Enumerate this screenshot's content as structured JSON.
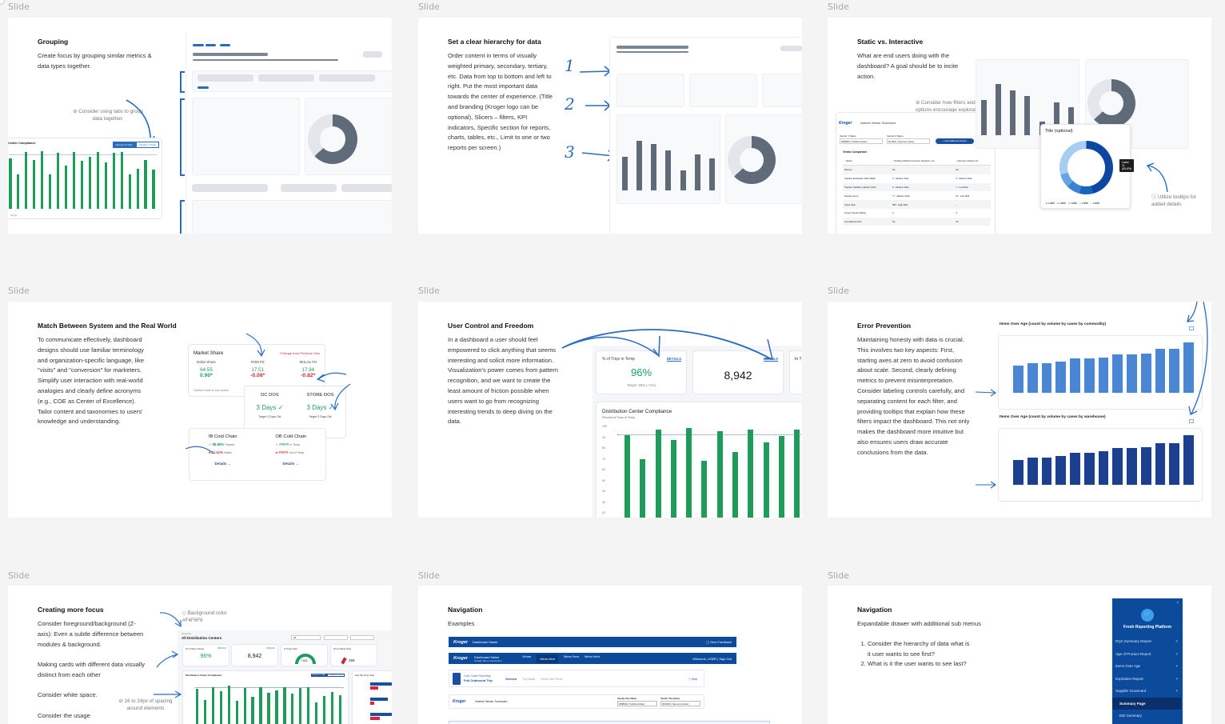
{
  "slide_label": "Slide",
  "slides": {
    "grouping": {
      "title": "Grouping",
      "body": "Create focus by grouping similar metrics & data types together.",
      "note": "Consider using tabs to group data together.",
      "chart": {
        "title": "Center Compliance",
        "tab1": "Percent of Trips",
        "tab2": "Number of Trips",
        "legend": "Target"
      }
    },
    "hierarchy": {
      "title": "Set a clear hierarchy for data",
      "body": "Order content in terms of visually weighted primary, secondary, tertiary, etc. Data from top to bottom and left to right. Put the most important data towards the center of experience. (Title and branding (Kroger logo can be optional), Slicers – filters, KPI indicators, Specific section for reports, charts, tables, etc., Limit to one or two reports per screen.)",
      "markers": [
        "1",
        "2",
        "3"
      ]
    },
    "static_interactive": {
      "title": "Static vs. Interactive",
      "body": "What are end users doing with the dashboard? A goal should be to incite action.",
      "note_filters": "Consider how filters and other options encourage exploration.",
      "note_tooltips": "Utilize tooltips for added details",
      "app_logo": "Kroger",
      "app_title": "Indirect Vendor Scorecard",
      "vendor1_label": "Vendor 1 Name",
      "vendor1_value": "3098943 | Toshiba Global ...",
      "vendor2_label": "Vendor 2 Name",
      "vendor2_value": "30 9931 | Siemens Indust...",
      "add_vendor": "+ Add Additional Vendor",
      "table_title": "Vendor Comparison",
      "table_headers": [
        "Metric",
        "Toshiba Global Commerce Solutions, Inc.",
        "Siemens Industry Inc."
      ],
      "table_rows": [
        [
          "Diverse",
          "No",
          "No"
        ],
        [
          "Supplier Evaluation Risk (SER)",
          "5 - Medium Risk",
          "5 - Medium Risk"
        ],
        [
          "Supplier Stability Indicator (SSI)",
          "6 - Medium Risk",
          "7 - Low Risk"
        ],
        [
          "Paydex Score",
          "77 - Medium Risk",
          "64 - Low Risk"
        ],
        [
          "Cyber Risk",
          "580 - High Risk",
          "--"
        ],
        [
          "Kroger Vendor Rating",
          "4",
          "3"
        ],
        [
          "Compliance Hold",
          "No",
          "No"
        ]
      ],
      "donut_title": "Title (optional)",
      "donut_labels": [
        "29.2%",
        "45.8%",
        "8.3%",
        "8.3%",
        "8.3%"
      ],
      "tooltip_label": "Label",
      "tooltip_value": "11 (45.8%)",
      "legend": [
        "Label",
        "Label",
        "Label",
        "Label",
        "Label"
      ]
    },
    "match": {
      "title": "Match Between System and the Real World",
      "body": "To communicate effectively, dashboard designs should use familiar terminology and organization-specific language, like \"visits\" and \"conversion\" for marketers. Simplify user interaction with real-world analogies and clearly define acronyms (e.g., COE as Center of Excellence). Tailor content and taxonomies to users' knowledge and understanding.",
      "market_share": {
        "title": "Market Share",
        "change_note": "*Change from Previous Year",
        "cols": [
          {
            "label": "Dollar Share",
            "value": "64.55",
            "change": "0.90*"
          },
          {
            "label": "ROM FD",
            "value": "17.51",
            "change": "-0.08*"
          },
          {
            "label": "MULOx FD",
            "value": "17.94",
            "change": "-0.82*"
          }
        ],
        "footnote": "*Market share is only availal"
      },
      "dos": [
        {
          "label": "DC DOS",
          "value": "3 Days",
          "target": "Target 3 Days Old"
        },
        {
          "label": "STORE DOS",
          "value": "3 Days",
          "target": "Target 3 Days Old"
        }
      ],
      "cold_chain": [
        {
          "label": "IB Cold Chain",
          "pass_value": "88.89%",
          "pass_label": "Passed",
          "fail_value": "11.11%",
          "fail_label": "Failed",
          "link": "Details →"
        },
        {
          "label": "OB Cold Chain",
          "pass_value": "#####",
          "pass_label": "In Temp",
          "fail_value": "#####",
          "fail_label": "Out of Temp",
          "link": "Details →"
        }
      ]
    },
    "user_control": {
      "title": "User Control and Freedom",
      "body": "In a dashboard a user should feel empowered to click anything that seems interesting and solicit more information. Visualization's power comes from pattern recognition, and we want to create the least amount of friction possible when users want to go from recognizing interesting trends to deep diving on the data.",
      "kpi1_label": "% of Trips in Temp",
      "kpi1_link": "DETAILS",
      "kpi1_value": "96%",
      "kpi1_target": "Target: 95% (+1%)",
      "kpi2_link": "DETAILS",
      "kpi2_value": "8,942",
      "kpi3_label": "In T",
      "chart_title": "Distribution Center Compliance",
      "chart_subtitle": "Percent of Trips In Temp"
    },
    "error_prevention": {
      "title": "Error Prevention",
      "body": "Maintaining honesty with data is crucial. This involves two key aspects: First, starting axes at zero to avoid confusion about scale. Second, clearly defining metrics to prevent misinterpretation. Consider labeling controls carefully, and separating content for each filter, and providing tooltips that explain how these filters impact the dashboard. This not only makes the dashboard more intuitive but also ensures users draw accurate conclusions from the data.",
      "chart1_title": "Items Over Age (count by volume by cases by commodity)",
      "chart2_title": "Items Over Age (count by volume by cases by warehouse)"
    },
    "focus": {
      "title": "Creating more focus",
      "p1": "Consider foreground/background (Z-axis): Even a subtle difference between modules & background.",
      "p2": "Making cards with different data visually distinct from each other",
      "p3": "Consider white space.",
      "p4": "Consider the usage",
      "note_bg": "Background color #F4F6F8",
      "note_spacing": "16 to 24px of spacing around elements",
      "dash_overline": "Overview",
      "dash_title": "All Distribution Centers",
      "filter_label": "All",
      "kpi1_label": "% of Trips in Temp",
      "kpi1_value": "96%",
      "kpi2_value": "8,942",
      "kpi3_label": "In Temp Trips",
      "kpi3_value": "7,601",
      "kpi4_label": "Out of Temp Trips",
      "kpi4_value": "358",
      "details": "DETAILS",
      "chart_title": "Distribution Center Compliance",
      "tab1": "Percent of Trips",
      "tab2": "Number of Trips",
      "side_title": "Avg Trip Time (Hrs)"
    },
    "nav_examples": {
      "title": "Navigation",
      "subtitle": "Examples",
      "bar1_logo": "Kroger",
      "bar1_name": "Dashboard Name",
      "bar1_right": "Give Feedback",
      "bar2_name": "Dashboard Name",
      "bar2_sub": "Smaller title or description",
      "bar2_menu": [
        "Home",
        "Menu Item",
        "Menu Item",
        "Menu Item"
      ],
      "bar2_right": "Welcome, USER | Sign Out",
      "bar3_title": "Cold Chain Reporting",
      "bar3_name": "Full Outbound Trip",
      "bar3_tabs": [
        "Overview",
        "Trip Details",
        "Period Over Period"
      ],
      "bar3_help": "Help",
      "bar4_name": "Indirect Vendor Scorecard",
      "bar4_v1_label": "Vendor One Name",
      "bar4_v1_value": "3098943 | Toshiba Global",
      "bar4_v2_label": "Vendor Two Name",
      "bar4_v2_value": "3010031 | Siemens Industr"
    },
    "nav_drawer": {
      "title": "Navigation",
      "subtitle": "Expandable drawer with additional sub menus",
      "list": [
        "Consider the hierarchy of data what is it user wants to see first?",
        "What is it the user wants to see last?"
      ],
      "drawer_title": "Fresh Reporting Platform",
      "items": [
        {
          "label": "DQA Summary Report",
          "chevron": "˅"
        },
        {
          "label": "Age of Product Report",
          "chevron": "˅"
        },
        {
          "label": "Items Over Age",
          "chevron": "˅"
        },
        {
          "label": "Expiration Report",
          "chevron": "˅"
        },
        {
          "label": "Supplier Scorecard",
          "chevron": "˄"
        }
      ],
      "sub_items": [
        "Summary Page",
        "EDI Summary"
      ],
      "collapse": "‹"
    }
  },
  "colors": {
    "accent": "#2a6bbd",
    "green": "#1f9b5c",
    "red": "#c8283a",
    "navy": "#0c4a9b",
    "bg": "#F4F6F8"
  }
}
